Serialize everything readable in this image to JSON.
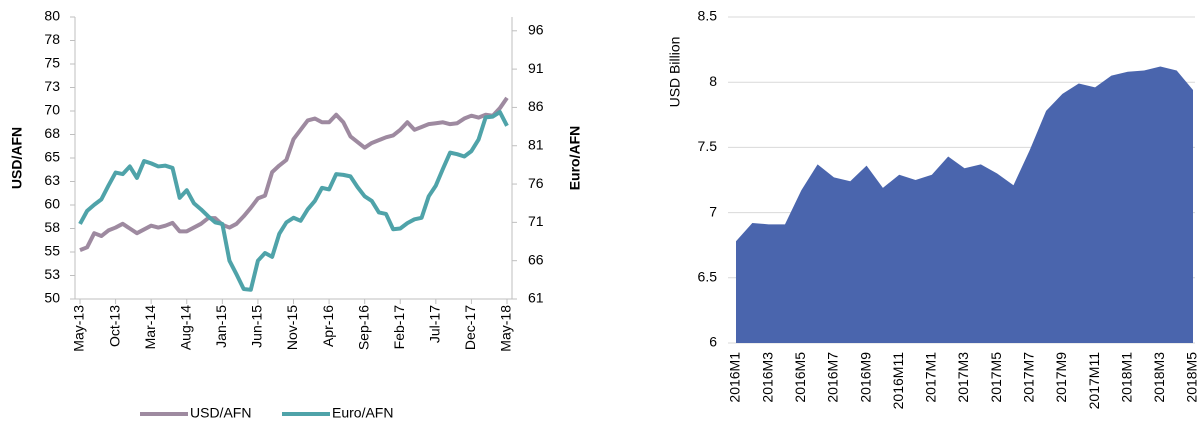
{
  "chart_data": [
    {
      "type": "line",
      "categories": [
        "May-13",
        null,
        null,
        null,
        null,
        "Oct-13",
        null,
        null,
        null,
        null,
        "Mar-14",
        null,
        null,
        null,
        null,
        "Aug-14",
        null,
        null,
        null,
        null,
        "Jan-15",
        null,
        null,
        null,
        null,
        "Jun-15",
        null,
        null,
        null,
        null,
        "Nov-15",
        null,
        null,
        null,
        null,
        "Apr-16",
        null,
        null,
        null,
        null,
        "Sep-16",
        null,
        null,
        null,
        null,
        "Feb-17",
        null,
        null,
        null,
        null,
        "Jul-17",
        null,
        null,
        null,
        null,
        "Dec-17",
        null,
        null,
        null,
        null,
        "May-18"
      ],
      "ylabel": "USD/AFN",
      "y2label": "Euro/AFN",
      "ylim": [
        50,
        80
      ],
      "yticks": [
        50,
        {
          "value": 52.5,
          "label": "53"
        },
        55,
        {
          "value": 57.5,
          "label": "58"
        },
        60,
        {
          "value": 62.5,
          "label": "63"
        },
        65,
        {
          "value": 67.5,
          "label": "68"
        },
        70,
        {
          "value": 72.5,
          "label": "73"
        },
        75,
        {
          "value": 77.5,
          "label": "78"
        },
        80
      ],
      "y2lim": [
        61,
        97.8
      ],
      "y2ticks": [
        61,
        66,
        71,
        76,
        81,
        86,
        91,
        96
      ],
      "legend": "bottom",
      "series": [
        {
          "name": "USD/AFN",
          "color": "#9e8aa0",
          "values": [
            55.2,
            55.5,
            57,
            56.7,
            57.3,
            57.6,
            58,
            57.5,
            57,
            57.4,
            57.8,
            57.6,
            57.8,
            58.1,
            57.2,
            57.2,
            57.6,
            58,
            58.6,
            58.6,
            57.9,
            57.6,
            58,
            58.8,
            59.7,
            60.7,
            61,
            63.5,
            64.2,
            64.8,
            67,
            68,
            69,
            69.2,
            68.8,
            68.8,
            69.6,
            68.8,
            67.3,
            66.7,
            66.1,
            66.6,
            66.9,
            67.2,
            67.4,
            68,
            68.8,
            68,
            68.3,
            68.6,
            68.7,
            68.8,
            68.6,
            68.7,
            69.2,
            69.5,
            69.3,
            69.6,
            69.5,
            70.3,
            71.4
          ]
        },
        {
          "name": "Euro/AFN",
          "color": "#4fa3a9",
          "axis": "y2",
          "values": [
            70.8,
            72.5,
            73.3,
            74,
            75.8,
            77.5,
            77.3,
            78.3,
            76.8,
            79,
            78.7,
            78.3,
            78.4,
            78.1,
            74.2,
            75.2,
            73.5,
            72.7,
            71.8,
            71,
            70.8,
            66,
            64.2,
            62.3,
            62.2,
            66,
            67,
            66.5,
            69.5,
            71,
            71.6,
            71.2,
            72.7,
            73.8,
            75.5,
            75.3,
            77.3,
            77.2,
            77,
            75.6,
            74.4,
            73.8,
            72.3,
            72.1,
            70.1,
            70.2,
            70.9,
            71.4,
            71.6,
            74.4,
            75.8,
            78,
            80.1,
            79.9,
            79.6,
            80.3,
            81.8,
            84.7,
            84.8,
            85.4,
            83.6
          ]
        }
      ]
    },
    {
      "type": "area",
      "categories": [
        "2016M1",
        null,
        "2016M3",
        null,
        "2016M5",
        null,
        "2016M7",
        null,
        "2016M9",
        null,
        "2016M11",
        null,
        "2017M1",
        null,
        "2017M3",
        null,
        "2017M5",
        null,
        "2017M7",
        null,
        "2017M9",
        null,
        "2017M11",
        null,
        "2018M1",
        null,
        "2018M3",
        null,
        "2018M5"
      ],
      "ylabel": "USD Billion",
      "color": "#4a65ad",
      "values": [
        6.78,
        6.92,
        6.91,
        6.91,
        7.17,
        7.37,
        7.27,
        7.24,
        7.36,
        7.19,
        7.29,
        7.25,
        7.29,
        7.43,
        7.34,
        7.37,
        7.3,
        7.21,
        7.48,
        7.78,
        7.91,
        7.99,
        7.96,
        8.05,
        8.08,
        8.09,
        8.12,
        8.09,
        7.94
      ],
      "ylim": [
        6,
        8.5
      ],
      "yticks": [
        6,
        6.5,
        7,
        7.5,
        8,
        8.5
      ],
      "grid": true
    }
  ]
}
